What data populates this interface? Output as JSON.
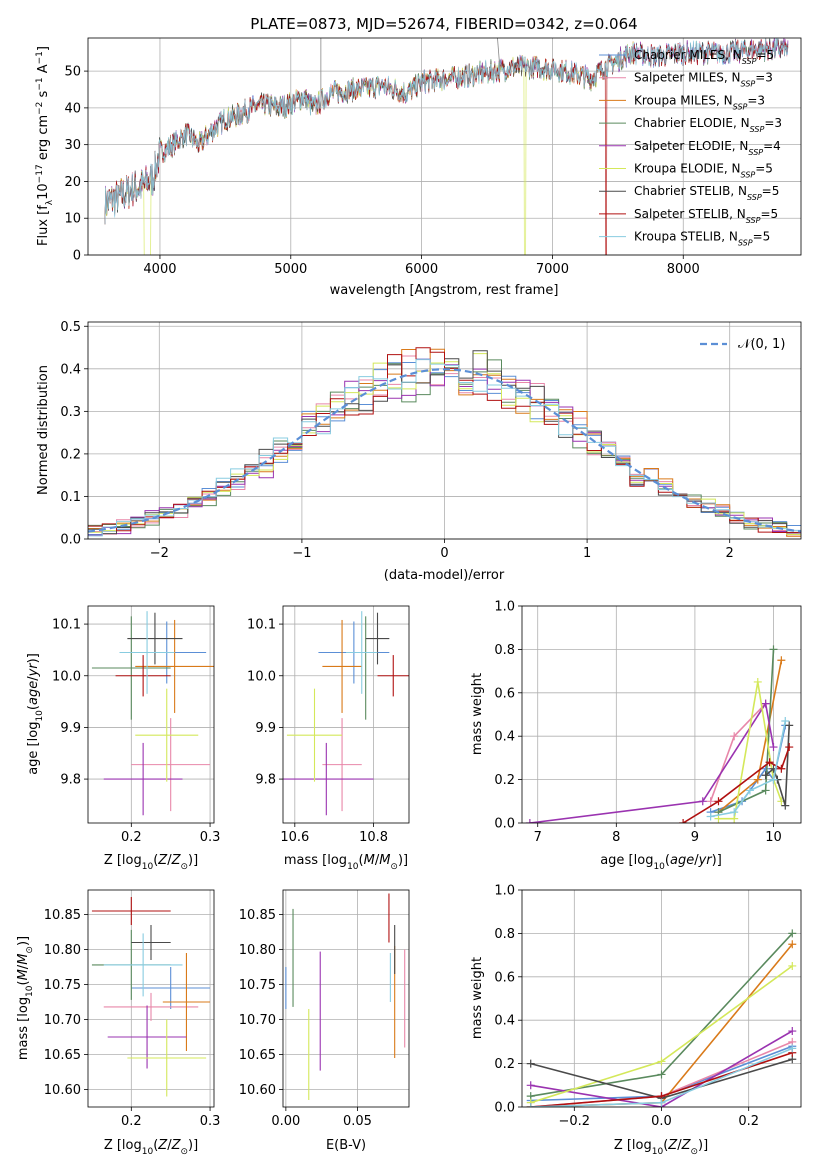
{
  "title": "PLATE=0873, MJD=52674, FIBERID=0342, z=0.064",
  "colors": {
    "Chabrier MILES": "#5b8fd6",
    "Salpeter MILES": "#e887a9",
    "Kroupa MILES": "#d97a1a",
    "Chabrier ELODIE": "#5a8a5e",
    "Salpeter ELODIE": "#9a33b0",
    "Kroupa ELODIE": "#d4e85a",
    "Chabrier STELIB": "#4a4a4a",
    "Salpeter STELIB": "#b01010",
    "Kroupa STELIB": "#88cce0"
  },
  "legend": {
    "entries": [
      {
        "prefix": "Chabrier MILES, N",
        "sub": "SSP",
        "suffix": "=5"
      },
      {
        "prefix": "Salpeter MILES, N",
        "sub": "SSP",
        "suffix": "=3"
      },
      {
        "prefix": "Kroupa MILES, N",
        "sub": "SSP",
        "suffix": "=3"
      },
      {
        "prefix": "Chabrier ELODIE, N",
        "sub": "SSP",
        "suffix": "=3"
      },
      {
        "prefix": "Salpeter ELODIE, N",
        "sub": "SSP",
        "suffix": "=4"
      },
      {
        "prefix": "Kroupa ELODIE, N",
        "sub": "SSP",
        "suffix": "=5"
      },
      {
        "prefix": "Chabrier STELIB, N",
        "sub": "SSP",
        "suffix": "=5"
      },
      {
        "prefix": "Salpeter STELIB, N",
        "sub": "SSP",
        "suffix": "=5"
      },
      {
        "prefix": "Kroupa STELIB, N",
        "sub": "SSP",
        "suffix": "=5"
      }
    ],
    "normal_label": "𝒩(0, 1)"
  },
  "chart_data": [
    {
      "type": "line",
      "panel": "spectrum",
      "xlabel": "wavelength [Angstrom, rest frame]",
      "ylabel_parts": [
        "Flux [f",
        "λ",
        "10",
        "−17",
        " erg cm",
        "−2",
        " s",
        "−1",
        " A",
        "−1",
        "]"
      ],
      "xlim": [
        3450,
        8900
      ],
      "ylim": [
        0,
        59
      ],
      "xticks": [
        4000,
        5000,
        6000,
        7000,
        8000
      ],
      "yticks": [
        0,
        10,
        20,
        30,
        40,
        50
      ],
      "continuum": [
        [
          3580,
          14
        ],
        [
          3700,
          16
        ],
        [
          3800,
          18
        ],
        [
          3880,
          19
        ],
        [
          3950,
          21
        ],
        [
          4000,
          28
        ],
        [
          4100,
          30
        ],
        [
          4200,
          33
        ],
        [
          4300,
          30
        ],
        [
          4400,
          34
        ],
        [
          4500,
          37
        ],
        [
          4600,
          38
        ],
        [
          4700,
          40
        ],
        [
          4800,
          41
        ],
        [
          4900,
          40
        ],
        [
          5000,
          41
        ],
        [
          5100,
          43
        ],
        [
          5175,
          40
        ],
        [
          5300,
          44
        ],
        [
          5500,
          45
        ],
        [
          5700,
          46
        ],
        [
          5890,
          44
        ],
        [
          6000,
          47
        ],
        [
          6200,
          48
        ],
        [
          6400,
          49
        ],
        [
          6563,
          50
        ],
        [
          6700,
          51
        ],
        [
          6900,
          51
        ],
        [
          7100,
          50
        ],
        [
          7300,
          48
        ],
        [
          7400,
          51
        ],
        [
          7600,
          55
        ],
        [
          7800,
          54
        ],
        [
          8000,
          55
        ],
        [
          8300,
          55
        ],
        [
          8600,
          56
        ],
        [
          8800,
          56
        ]
      ]
    },
    {
      "type": "bar",
      "panel": "residual-histogram",
      "xlabel": "(data-model)/error",
      "ylabel": "Normed distribution",
      "xlim": [
        -2.5,
        2.5
      ],
      "ylim": [
        0,
        0.51
      ],
      "xticks": [
        -2,
        -1,
        0,
        1,
        2
      ],
      "yticks": [
        0,
        0.1,
        0.2,
        0.3,
        0.4,
        0.5
      ],
      "bin_width": 0.1,
      "curve": {
        "name": "𝒩(0, 1)",
        "mean": 0,
        "sigma": 1
      }
    },
    {
      "type": "scatter",
      "panel": "age-vs-Z",
      "xlabel": "Z [log₁₀(Z/Z☉)]",
      "ylabel": "age  [log₁₀(age/yr)]",
      "xlim": [
        0.145,
        0.305
      ],
      "ylim": [
        9.715,
        10.135
      ],
      "xticks": [
        0.2,
        0.3
      ],
      "yticks": [
        9.8,
        9.9,
        10.0,
        10.1
      ],
      "points": [
        {
          "name": "Chabrier MILES",
          "x": 0.245,
          "y": 10.045,
          "xerr": 0.05,
          "yerr": 0.06
        },
        {
          "name": "Salpeter MILES",
          "x": 0.25,
          "y": 9.828,
          "xerr": 0.05,
          "yerr": 0.09
        },
        {
          "name": "Kroupa MILES",
          "x": 0.255,
          "y": 10.018,
          "xerr": 0.05,
          "yerr": 0.09
        },
        {
          "name": "Chabrier ELODIE",
          "x": 0.2,
          "y": 10.015,
          "xerr": 0.05,
          "yerr": 0.1
        },
        {
          "name": "Salpeter ELODIE",
          "x": 0.215,
          "y": 9.8,
          "xerr": 0.05,
          "yerr": 0.07
        },
        {
          "name": "Kroupa ELODIE",
          "x": 0.245,
          "y": 9.885,
          "xerr": 0.04,
          "yerr": 0.09
        },
        {
          "name": "Chabrier STELIB",
          "x": 0.23,
          "y": 10.072,
          "xerr": 0.035,
          "yerr": 0.05
        },
        {
          "name": "Salpeter STELIB",
          "x": 0.215,
          "y": 10.0,
          "xerr": 0.035,
          "yerr": 0.04
        },
        {
          "name": "Kroupa STELIB",
          "x": 0.22,
          "y": 10.045,
          "xerr": 0.035,
          "yerr": 0.08
        }
      ]
    },
    {
      "type": "scatter",
      "panel": "age-vs-mass",
      "xlabel": "mass [log₁₀(M/M☉)]",
      "xlim": [
        10.57,
        10.89
      ],
      "ylim": [
        9.715,
        10.135
      ],
      "xticks": [
        10.6,
        10.8
      ],
      "yticks": [
        9.8,
        9.9,
        10.0,
        10.1
      ],
      "points": [
        {
          "name": "Chabrier MILES",
          "x": 10.75,
          "y": 10.045,
          "xerr": 0.09,
          "yerr": 0.06
        },
        {
          "name": "Salpeter MILES",
          "x": 10.72,
          "y": 9.828,
          "xerr": 0.05,
          "yerr": 0.09
        },
        {
          "name": "Kroupa MILES",
          "x": 10.72,
          "y": 10.018,
          "xerr": 0.05,
          "yerr": 0.09
        },
        {
          "name": "Chabrier ELODIE",
          "x": 10.78,
          "y": 10.015,
          "xerr": 0.0,
          "yerr": 0.1
        },
        {
          "name": "Salpeter ELODIE",
          "x": 10.68,
          "y": 9.8,
          "xerr": 0.12,
          "yerr": 0.07
        },
        {
          "name": "Kroupa ELODIE",
          "x": 10.65,
          "y": 9.885,
          "xerr": 0.07,
          "yerr": 0.09
        },
        {
          "name": "Chabrier STELIB",
          "x": 10.81,
          "y": 10.072,
          "xerr": 0.03,
          "yerr": 0.05
        },
        {
          "name": "Salpeter STELIB",
          "x": 10.85,
          "y": 10.0,
          "xerr": 0.04,
          "yerr": 0.04
        },
        {
          "name": "Kroupa STELIB",
          "x": 10.77,
          "y": 10.045,
          "xerr": 0.04,
          "yerr": 0.08
        }
      ]
    },
    {
      "type": "line",
      "panel": "mass-weight-vs-age",
      "xlabel": "age  [log₁₀(age/yr)]",
      "ylabel": "mass weight",
      "xlim": [
        6.8,
        10.35
      ],
      "ylim": [
        0,
        1
      ],
      "xticks": [
        7,
        8,
        9,
        10
      ],
      "yticks": [
        0,
        0.2,
        0.4,
        0.6,
        0.8,
        1.0
      ],
      "series": [
        {
          "name": "Chabrier MILES",
          "x": [
            9.2,
            9.6,
            9.9,
            10.0,
            10.15
          ],
          "y": [
            0.05,
            0.1,
            0.25,
            0.2,
            0.45
          ]
        },
        {
          "name": "Salpeter MILES",
          "x": [
            9.2,
            9.5,
            9.9
          ],
          "y": [
            0.1,
            0.4,
            0.55
          ]
        },
        {
          "name": "Kroupa MILES",
          "x": [
            9.3,
            9.8,
            10.1
          ],
          "y": [
            0.05,
            0.2,
            0.75
          ]
        },
        {
          "name": "Chabrier ELODIE",
          "x": [
            9.3,
            9.9,
            10.0
          ],
          "y": [
            0.05,
            0.15,
            0.8
          ]
        },
        {
          "name": "Salpeter ELODIE",
          "x": [
            6.9,
            9.1,
            9.9,
            10.0
          ],
          "y": [
            0.0,
            0.1,
            0.55,
            0.35
          ]
        },
        {
          "name": "Kroupa ELODIE",
          "x": [
            9.3,
            9.5,
            9.8,
            10.0,
            10.1
          ],
          "y": [
            0.02,
            0.02,
            0.65,
            0.2,
            0.1
          ]
        },
        {
          "name": "Chabrier STELIB",
          "x": [
            9.9,
            10.0,
            10.05,
            10.15,
            10.2
          ],
          "y": [
            0.22,
            0.25,
            0.2,
            0.08,
            0.45
          ]
        },
        {
          "name": "Salpeter STELIB",
          "x": [
            8.85,
            9.3,
            9.95,
            10.1,
            10.2
          ],
          "y": [
            0.0,
            0.1,
            0.28,
            0.25,
            0.35
          ]
        },
        {
          "name": "Kroupa STELIB",
          "x": [
            9.2,
            9.5,
            9.7,
            10.0,
            10.15
          ],
          "y": [
            0.03,
            0.05,
            0.15,
            0.2,
            0.47
          ]
        }
      ]
    },
    {
      "type": "scatter",
      "panel": "mass-vs-Z",
      "xlabel": "Z [log₁₀(Z/Z☉)]",
      "ylabel": "mass [log₁₀(M/M☉)]",
      "xlim": [
        0.145,
        0.305
      ],
      "ylim": [
        10.575,
        10.885
      ],
      "xticks": [
        0.2,
        0.3
      ],
      "yticks": [
        10.6,
        10.65,
        10.7,
        10.75,
        10.8,
        10.85
      ],
      "points": [
        {
          "name": "Chabrier MILES",
          "x": 0.25,
          "y": 10.745,
          "xerr": 0.05,
          "yerr": 0.03
        },
        {
          "name": "Salpeter MILES",
          "x": 0.225,
          "y": 10.718,
          "xerr": 0.06,
          "yerr": 0.02
        },
        {
          "name": "Kroupa MILES",
          "x": 0.27,
          "y": 10.725,
          "xerr": 0.03,
          "yerr": 0.07
        },
        {
          "name": "Chabrier ELODIE",
          "x": 0.2,
          "y": 10.778,
          "xerr": 0.05,
          "yerr": 0.05
        },
        {
          "name": "Salpeter ELODIE",
          "x": 0.22,
          "y": 10.675,
          "xerr": 0.05,
          "yerr": 0.045
        },
        {
          "name": "Kroupa ELODIE",
          "x": 0.245,
          "y": 10.645,
          "xerr": 0.05,
          "yerr": 0.055
        },
        {
          "name": "Chabrier STELIB",
          "x": 0.225,
          "y": 10.81,
          "xerr": 0.025,
          "yerr": 0.025
        },
        {
          "name": "Salpeter STELIB",
          "x": 0.2,
          "y": 10.855,
          "xerr": 0.05,
          "yerr": 0.02
        },
        {
          "name": "Kroupa STELIB",
          "x": 0.215,
          "y": 10.778,
          "xerr": 0.05,
          "yerr": 0.045
        }
      ]
    },
    {
      "type": "scatter",
      "panel": "mass-vs-EBV",
      "xlabel": "E(B-V)",
      "xlim": [
        -0.002,
        0.086
      ],
      "ylim": [
        10.575,
        10.885
      ],
      "xticks": [
        0.0,
        0.05
      ],
      "yticks": [
        10.6,
        10.65,
        10.7,
        10.75,
        10.8,
        10.85
      ],
      "points": [
        {
          "name": "Chabrier MILES",
          "x": 0.0,
          "y": 10.745,
          "yerr": 0.03
        },
        {
          "name": "Salpeter MILES",
          "x": 0.083,
          "y": 10.73,
          "yerr": 0.07
        },
        {
          "name": "Kroupa MILES",
          "x": 0.076,
          "y": 10.725,
          "yerr": 0.08
        },
        {
          "name": "Chabrier ELODIE",
          "x": 0.005,
          "y": 10.788,
          "yerr": 0.07
        },
        {
          "name": "Salpeter ELODIE",
          "x": 0.024,
          "y": 10.712,
          "yerr": 0.085
        },
        {
          "name": "Kroupa ELODIE",
          "x": 0.016,
          "y": 10.65,
          "yerr": 0.065
        },
        {
          "name": "Chabrier STELIB",
          "x": 0.076,
          "y": 10.8,
          "yerr": 0.035
        },
        {
          "name": "Salpeter STELIB",
          "x": 0.072,
          "y": 10.845,
          "yerr": 0.035
        },
        {
          "name": "Kroupa STELIB",
          "x": 0.073,
          "y": 10.76,
          "yerr": 0.035
        }
      ]
    },
    {
      "type": "line",
      "panel": "mass-weight-vs-Z",
      "xlabel": "Z [log₁₀(Z/Z☉)]",
      "ylabel": "mass weight",
      "xlim": [
        -0.32,
        0.32
      ],
      "ylim": [
        0,
        1
      ],
      "xticks": [
        -0.2,
        0.0,
        0.2
      ],
      "yticks": [
        0,
        0.2,
        0.4,
        0.6,
        0.8,
        1.0
      ],
      "series": [
        {
          "name": "Chabrier MILES",
          "x": [
            -0.3,
            0.0,
            0.3
          ],
          "y": [
            0.03,
            0.05,
            0.28
          ]
        },
        {
          "name": "Salpeter MILES",
          "x": [
            -0.3,
            0.0,
            0.3
          ],
          "y": [
            0.0,
            0.05,
            0.3
          ]
        },
        {
          "name": "Kroupa MILES",
          "x": [
            -0.3,
            0.0,
            0.3
          ],
          "y": [
            0.0,
            0.02,
            0.75
          ]
        },
        {
          "name": "Chabrier ELODIE",
          "x": [
            -0.3,
            0.0,
            0.3
          ],
          "y": [
            0.05,
            0.15,
            0.8
          ]
        },
        {
          "name": "Salpeter ELODIE",
          "x": [
            -0.3,
            0.0,
            0.3
          ],
          "y": [
            0.1,
            0.0,
            0.35
          ]
        },
        {
          "name": "Kroupa ELODIE",
          "x": [
            -0.3,
            0.0,
            0.3
          ],
          "y": [
            0.02,
            0.21,
            0.65
          ]
        },
        {
          "name": "Chabrier STELIB",
          "x": [
            -0.3,
            0.0,
            0.3
          ],
          "y": [
            0.2,
            0.04,
            0.22
          ]
        },
        {
          "name": "Salpeter STELIB",
          "x": [
            -0.3,
            0.0,
            0.3
          ],
          "y": [
            0.0,
            0.05,
            0.25
          ]
        },
        {
          "name": "Kroupa STELIB",
          "x": [
            -0.3,
            0.0,
            0.3
          ],
          "y": [
            0.0,
            0.02,
            0.27
          ]
        }
      ]
    }
  ]
}
